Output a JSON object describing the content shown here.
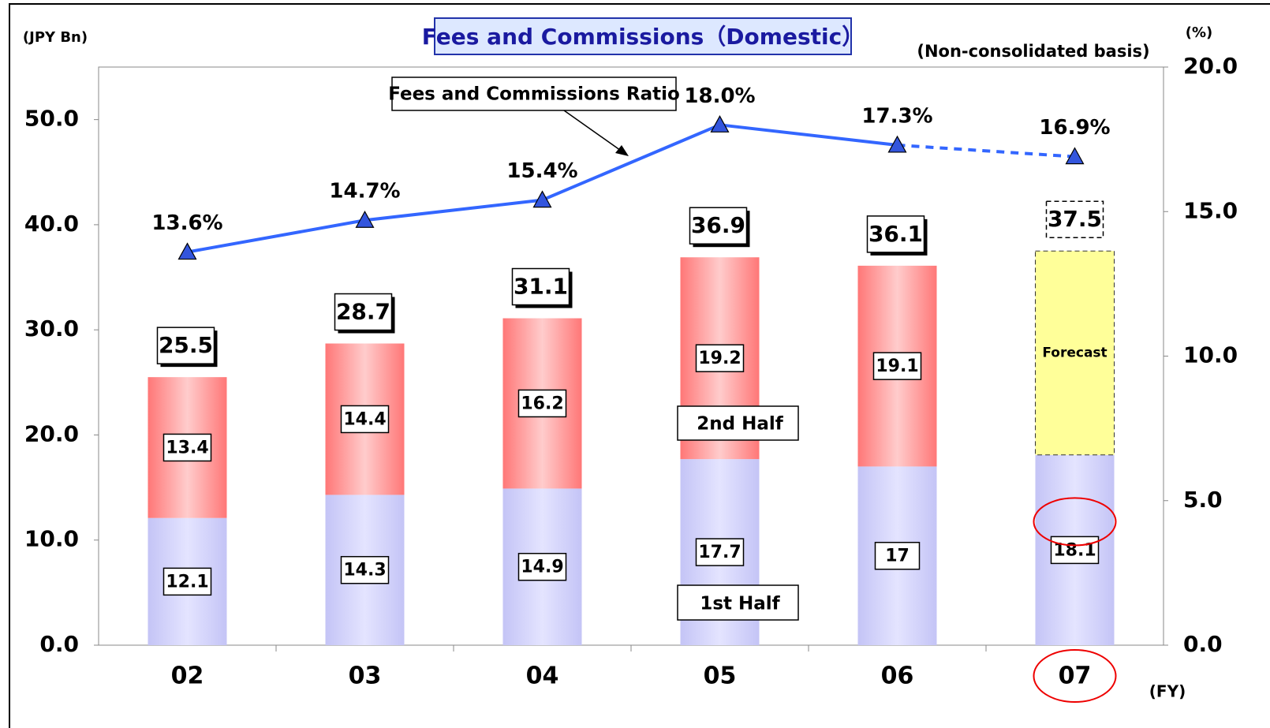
{
  "chart_data": {
    "type": "stacked_bar_line",
    "title": "Fees and Commissions（Domestic）",
    "subtitle": "(Non-consolidated basis)",
    "y_label": "(JPY Bn)",
    "y2_label": "(%)",
    "x_label": "(FY)",
    "categories": [
      "02",
      "03",
      "04",
      "05",
      "06",
      "07"
    ],
    "series": [
      {
        "name": "1st Half",
        "type": "bar",
        "color": "#c8c8fa",
        "values": [
          12.1,
          14.3,
          14.9,
          17.7,
          17.0,
          18.1
        ]
      },
      {
        "name": "2nd Half",
        "type": "bar",
        "color": "#f87878",
        "values": [
          13.4,
          14.4,
          16.2,
          19.2,
          19.1,
          null
        ]
      },
      {
        "name": "Forecast",
        "type": "bar",
        "color": "#ffff99",
        "values": [
          null,
          null,
          null,
          null,
          null,
          19.4
        ]
      },
      {
        "name": "Fees and Commissions Ratio",
        "type": "line",
        "axis": "y2",
        "color": "#3366ff",
        "values": [
          13.6,
          14.7,
          15.4,
          18.0,
          17.3,
          16.9
        ],
        "value_labels": [
          "13.6%",
          "14.7%",
          "15.4%",
          "18.0%",
          "17.3%",
          "16.9%"
        ]
      }
    ],
    "totals": [
      25.5,
      28.7,
      31.1,
      36.9,
      36.1,
      37.5
    ],
    "forecast_index": 5,
    "ylim": [
      0,
      55
    ],
    "yticks": [
      {
        "value": 0,
        "label": "0.0"
      },
      {
        "value": 10,
        "label": "10.0"
      },
      {
        "value": 20,
        "label": "20.0"
      },
      {
        "value": 30,
        "label": "30.0"
      },
      {
        "value": 40,
        "label": "40.0"
      },
      {
        "value": 50,
        "label": "50.0"
      }
    ],
    "y2lim": [
      0,
      20
    ],
    "y2ticks": [
      {
        "value": 0,
        "label": "0.0"
      },
      {
        "value": 5,
        "label": "5.0"
      },
      {
        "value": 10,
        "label": "10.0"
      },
      {
        "value": 15,
        "label": "15.0"
      },
      {
        "value": 20,
        "label": "20.0"
      }
    ],
    "grid": false
  }
}
